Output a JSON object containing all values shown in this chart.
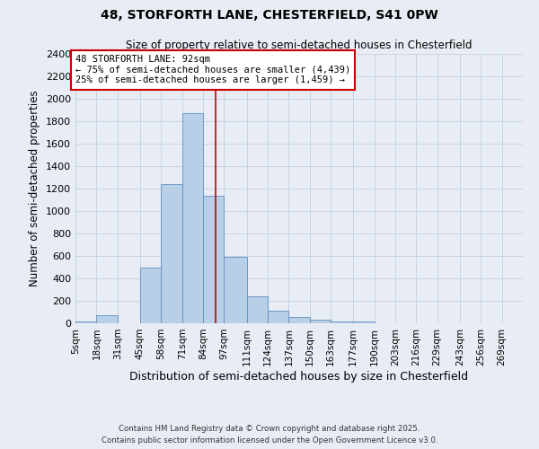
{
  "title1": "48, STORFORTH LANE, CHESTERFIELD, S41 0PW",
  "title2": "Size of property relative to semi-detached houses in Chesterfield",
  "xlabel": "Distribution of semi-detached houses by size in Chesterfield",
  "ylabel": "Number of semi-detached properties",
  "bin_edges": [
    5,
    18,
    31,
    45,
    58,
    71,
    84,
    97,
    111,
    124,
    137,
    150,
    163,
    177,
    190,
    203,
    216,
    229,
    243,
    256,
    269,
    282
  ],
  "bar_heights": [
    15,
    75,
    0,
    500,
    1240,
    1870,
    1140,
    590,
    240,
    110,
    60,
    35,
    20,
    15,
    0,
    0,
    0,
    0,
    0,
    0,
    0
  ],
  "bar_color": "#b8cfe8",
  "bar_edge_color": "#6090c0",
  "property_size": 92,
  "property_line_color": "#cc0000",
  "annotation_text": "48 STORFORTH LANE: 92sqm\n← 75% of semi-detached houses are smaller (4,439)\n25% of semi-detached houses are larger (1,459) →",
  "annotation_box_color": "#ffffff",
  "annotation_box_edge_color": "#cc0000",
  "ylim": [
    0,
    2400
  ],
  "yticks": [
    0,
    200,
    400,
    600,
    800,
    1000,
    1200,
    1400,
    1600,
    1800,
    2000,
    2200,
    2400
  ],
  "tick_labels": [
    "5sqm",
    "18sqm",
    "31sqm",
    "45sqm",
    "58sqm",
    "71sqm",
    "84sqm",
    "97sqm",
    "111sqm",
    "124sqm",
    "137sqm",
    "150sqm",
    "163sqm",
    "177sqm",
    "190sqm",
    "203sqm",
    "216sqm",
    "229sqm",
    "243sqm",
    "256sqm",
    "269sqm"
  ],
  "tick_positions": [
    5,
    18,
    31,
    45,
    58,
    71,
    84,
    97,
    111,
    124,
    137,
    150,
    163,
    177,
    190,
    203,
    216,
    229,
    243,
    256,
    269
  ],
  "grid_color": "#c8d4e4",
  "background_color": "#e8edf5",
  "footer1": "Contains HM Land Registry data © Crown copyright and database right 2025.",
  "footer2": "Contains public sector information licensed under the Open Government Licence v3.0."
}
